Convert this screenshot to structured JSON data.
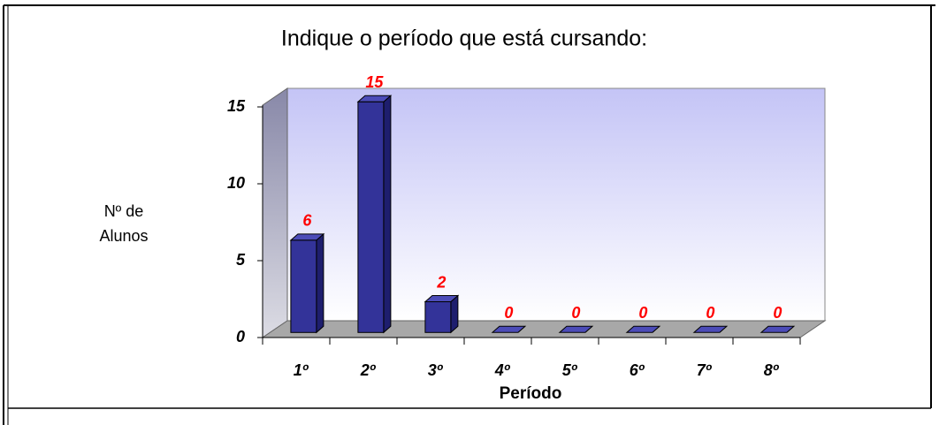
{
  "chart_data": {
    "type": "bar3d",
    "title": "Indique o período que está cursando:",
    "y_label": [
      "Nº de",
      "Alunos"
    ],
    "x_label": "Período",
    "categories": [
      "1º",
      "2º",
      "3º",
      "4º",
      "5º",
      "6º",
      "7º",
      "8º"
    ],
    "values": [
      6,
      15,
      2,
      0,
      0,
      0,
      0,
      0
    ],
    "color": "#333399",
    "label_color": "#ff0000",
    "ylim": [
      0,
      15
    ],
    "yticks": [
      0,
      5,
      10,
      15
    ],
    "grid": false
  }
}
